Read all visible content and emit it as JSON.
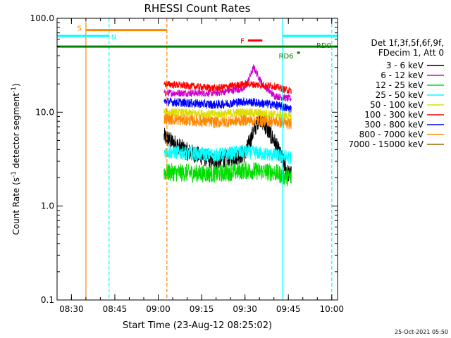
{
  "chart_data": {
    "type": "line",
    "title": "RHESSI Count Rates",
    "xlabel": "Start Time (23-Aug-12 08:25:02)",
    "ylabel": "Count Rate (s⁻¹ detector segment⁻¹)",
    "ylabel_main": "Count Rate (s",
    "ylabel_sup1": "-1",
    "ylabel_mid": " detector segment",
    "ylabel_sup2": "-1",
    "ylabel_end": ")",
    "yscale": "log",
    "ylim": [
      0.1,
      100.0
    ],
    "xlim": [
      "08:25:02",
      "10:02:00"
    ],
    "x_ticks": [
      "08:30",
      "08:45",
      "09:00",
      "09:15",
      "09:30",
      "09:45",
      "10:00"
    ],
    "y_ticks": [
      "0.1",
      "1.0",
      "10.0",
      "100.0"
    ],
    "legend_header": [
      "Det 1f,3f,5f,6f,9f,",
      "FDecim 1, Att 0"
    ],
    "legend_position": "right",
    "timestamp": "25-Oct-2021 05:50",
    "data_window": [
      "09:02:00",
      "09:46:00"
    ],
    "series": [
      {
        "name": "3 - 6 keV",
        "color": "#000000",
        "approx_level": 3.5,
        "points": [
          [
            "09:02",
            5.5
          ],
          [
            "09:10",
            3.8
          ],
          [
            "09:20",
            3.0
          ],
          [
            "09:30",
            3.6
          ],
          [
            "09:35",
            9.0
          ],
          [
            "09:40",
            5.0
          ],
          [
            "09:45",
            2.2
          ]
        ]
      },
      {
        "name": "6 - 12 keV",
        "color": "#cc00cc",
        "approx_level": 16,
        "points": [
          [
            "09:02",
            16
          ],
          [
            "09:20",
            16
          ],
          [
            "09:30",
            18
          ],
          [
            "09:33",
            30
          ],
          [
            "09:36",
            20
          ],
          [
            "09:40",
            15
          ],
          [
            "09:45",
            14
          ]
        ]
      },
      {
        "name": "12 - 25 keV",
        "color": "#00dd00",
        "approx_level": 2.2,
        "points": [
          [
            "09:02",
            2.3
          ],
          [
            "09:20",
            2.2
          ],
          [
            "09:30",
            2.4
          ],
          [
            "09:40",
            2.3
          ],
          [
            "09:45",
            2.0
          ]
        ]
      },
      {
        "name": "25 - 50 keV",
        "color": "#00ffff",
        "approx_level": 3.5,
        "points": [
          [
            "09:02",
            3.8
          ],
          [
            "09:20",
            3.5
          ],
          [
            "09:30",
            3.8
          ],
          [
            "09:40",
            3.5
          ],
          [
            "09:45",
            3.3
          ]
        ]
      },
      {
        "name": "50 - 100 keV",
        "color": "#dddd00",
        "approx_level": 9.5,
        "points": [
          [
            "09:02",
            10
          ],
          [
            "09:20",
            9.5
          ],
          [
            "09:30",
            10
          ],
          [
            "09:40",
            9.5
          ],
          [
            "09:45",
            9.0
          ]
        ]
      },
      {
        "name": "100 - 300 keV",
        "color": "#ff0000",
        "approx_level": 19,
        "points": [
          [
            "09:02",
            20
          ],
          [
            "09:20",
            18
          ],
          [
            "09:30",
            20
          ],
          [
            "09:40",
            19
          ],
          [
            "09:45",
            17
          ]
        ]
      },
      {
        "name": "300 - 800 keV",
        "color": "#0000ff",
        "approx_level": 12.5,
        "points": [
          [
            "09:02",
            13
          ],
          [
            "09:20",
            12
          ],
          [
            "09:30",
            13
          ],
          [
            "09:40",
            12
          ],
          [
            "09:45",
            11
          ]
        ]
      },
      {
        "name": "800 - 7000 keV",
        "color": "#ff8800",
        "approx_level": 8,
        "points": [
          [
            "09:02",
            8.5
          ],
          [
            "09:20",
            7.8
          ],
          [
            "09:30",
            8.2
          ],
          [
            "09:40",
            8.0
          ],
          [
            "09:45",
            7.5
          ]
        ]
      },
      {
        "name": "7000 - 15000 keV",
        "color": "#996600",
        "approx_level": null,
        "points": []
      }
    ],
    "annotations": [
      {
        "label": "S",
        "color": "#ff8800",
        "level": 75,
        "start": "08:35",
        "end": "09:03"
      },
      {
        "label": "N",
        "color": "#00ffff",
        "level": 65,
        "start": "08:25:02",
        "end": "08:43"
      },
      {
        "label": "N",
        "color": "#00ffff",
        "level": 65,
        "start": "09:43",
        "end": "10:02",
        "label_hidden": true
      },
      {
        "label": "F",
        "color": "#ff0000",
        "level": 58,
        "start": "09:31",
        "end": "09:36"
      },
      {
        "label": "RD0",
        "color": "#008000",
        "level": 50,
        "start": "08:25:02",
        "end": "10:02"
      },
      {
        "label": "RD6",
        "color": "#008000",
        "level": 43,
        "start": "09:48",
        "end": "09:49"
      }
    ],
    "vertical_lines": [
      {
        "time": "08:35",
        "color": "#ff8800",
        "style": "solid"
      },
      {
        "time": "08:43",
        "color": "#00ffff",
        "style": "dashed"
      },
      {
        "time": "09:03",
        "color": "#ff8800",
        "style": "dashed"
      },
      {
        "time": "09:43",
        "color": "#00ffff",
        "style": "solid"
      },
      {
        "time": "10:00",
        "color": "#00ffff",
        "style": "dashed"
      }
    ]
  }
}
